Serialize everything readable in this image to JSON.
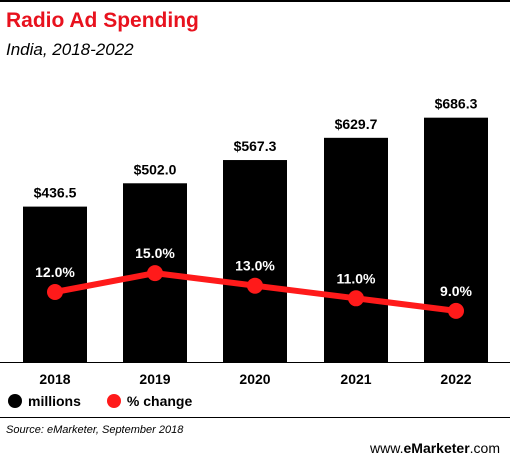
{
  "header": {
    "title": "Radio Ad Spending",
    "subtitle": "India, 2018-2022"
  },
  "colors": {
    "title": "#e8121e",
    "bar": "#000000",
    "line": "#ff1a1a",
    "value_label": "#ffffff"
  },
  "chart_data": {
    "type": "bar",
    "categories": [
      "2018",
      "2019",
      "2020",
      "2021",
      "2022"
    ],
    "series": [
      {
        "name": "millions",
        "type": "bar",
        "values": [
          436.5,
          502.0,
          567.3,
          629.7,
          686.3
        ],
        "labels": [
          "$436.5",
          "$502.0",
          "$567.3",
          "$629.7",
          "$686.3"
        ]
      },
      {
        "name": "% change",
        "type": "line",
        "values": [
          12.0,
          15.0,
          13.0,
          11.0,
          9.0
        ],
        "labels": [
          "12.0%",
          "15.0%",
          "13.0%",
          "11.0%",
          "9.0%"
        ]
      }
    ],
    "title": "Radio Ad Spending",
    "subtitle": "India, 2018-2022",
    "legend_position": "bottom-left",
    "grid": false
  },
  "legend": {
    "bar_label": "millions",
    "line_label": "% change"
  },
  "footer": {
    "source": "Source: eMarketer, September 2018",
    "brand_prefix": "www.",
    "brand_name": "eMarketer",
    "brand_suffix": ".com"
  }
}
